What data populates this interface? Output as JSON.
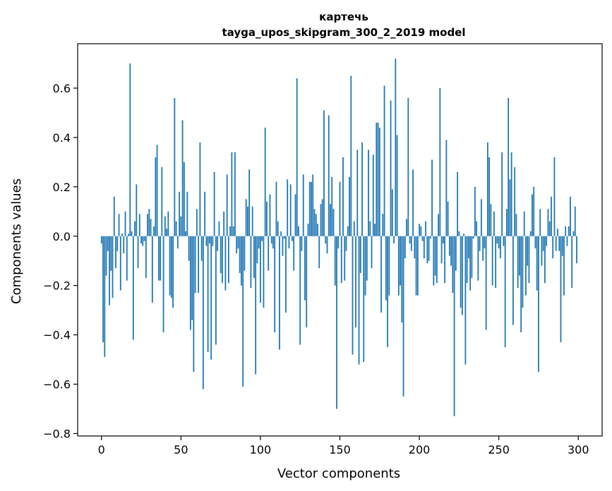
{
  "chart_data": {
    "type": "bar",
    "title": "картечь",
    "subtitle": "tayga_upos_skipgram_300_2_2019 model",
    "xlabel": "Vector components",
    "ylabel": "Components values",
    "xlim": [
      -15,
      315
    ],
    "ylim": [
      -0.81,
      0.78
    ],
    "xticks": [
      0,
      50,
      100,
      150,
      200,
      250,
      300
    ],
    "yticks": [
      -0.8,
      -0.6,
      -0.4,
      -0.2,
      0.0,
      0.2,
      0.4,
      0.6
    ],
    "xtick_labels": [
      "0",
      "50",
      "100",
      "150",
      "200",
      "250",
      "300"
    ],
    "ytick_labels": [
      "−0.8",
      "−0.6",
      "−0.4",
      "−0.2",
      "0.0",
      "0.2",
      "0.4",
      "0.6"
    ],
    "bar_color": "#1f77b4",
    "grid": false,
    "values": [
      -0.03,
      -0.43,
      -0.49,
      -0.16,
      -0.06,
      -0.28,
      -0.14,
      -0.25,
      0.16,
      -0.13,
      -0.06,
      0.09,
      -0.22,
      0.01,
      -0.07,
      0.1,
      -0.18,
      0.01,
      0.7,
      0.02,
      -0.42,
      0.06,
      0.21,
      -0.13,
      0.09,
      -0.03,
      -0.04,
      -0.02,
      -0.17,
      0.09,
      0.11,
      0.07,
      -0.27,
      0.04,
      0.32,
      0.37,
      -0.18,
      -0.18,
      0.28,
      -0.39,
      0.08,
      0.03,
      0.1,
      -0.24,
      -0.25,
      -0.29,
      0.56,
      0.06,
      -0.05,
      0.18,
      0.08,
      0.47,
      0.3,
      0.02,
      0.18,
      -0.1,
      -0.38,
      -0.34,
      -0.55,
      -0.23,
      0.11,
      -0.23,
      0.38,
      -0.1,
      -0.62,
      0.18,
      -0.04,
      -0.47,
      -0.03,
      -0.5,
      -0.04,
      0.26,
      -0.44,
      -0.06,
      0.06,
      -0.15,
      -0.19,
      0.1,
      -0.22,
      0.25,
      -0.19,
      0.04,
      0.34,
      0.04,
      0.34,
      -0.07,
      -0.05,
      -0.15,
      -0.2,
      -0.61,
      -0.14,
      0.15,
      0.12,
      0.27,
      -0.21,
      0.12,
      -0.17,
      -0.56,
      -0.11,
      -0.05,
      -0.27,
      -0.02,
      -0.29,
      0.44,
      0.14,
      -0.14,
      0.17,
      -0.03,
      -0.05,
      -0.39,
      0.22,
      0.06,
      -0.46,
      0.02,
      -0.08,
      -0.01,
      -0.31,
      0.23,
      -0.05,
      0.21,
      -0.02,
      -0.14,
      0.17,
      0.64,
      0.04,
      -0.44,
      -0.06,
      0.25,
      -0.26,
      -0.37,
      0.05,
      0.22,
      0.22,
      0.25,
      0.11,
      0.09,
      0.05,
      -0.13,
      0.13,
      0.15,
      0.51,
      -0.03,
      -0.07,
      0.49,
      0.13,
      0.24,
      0.11,
      -0.2,
      -0.7,
      -0.05,
      0.22,
      -0.19,
      0.32,
      -0.18,
      -0.06,
      0.04,
      0.24,
      0.65,
      -0.48,
      0.06,
      -0.37,
      0.35,
      -0.52,
      -0.15,
      0.38,
      -0.51,
      -0.24,
      -0.18,
      0.35,
      0.06,
      -0.13,
      0.33,
      0.05,
      0.46,
      0.46,
      0.44,
      -0.31,
      0.09,
      0.61,
      -0.26,
      -0.45,
      -0.24,
      0.55,
      0.19,
      -0.03,
      0.72,
      0.41,
      -0.24,
      -0.2,
      -0.35,
      -0.65,
      -0.09,
      0.07,
      0.56,
      -0.03,
      -0.06,
      0.27,
      -0.09,
      -0.24,
      -0.24,
      0.05,
      0.04,
      -0.02,
      -0.09,
      0.06,
      -0.11,
      -0.1,
      -0.01,
      0.31,
      -0.2,
      -0.16,
      -0.19,
      0.09,
      0.6,
      -0.11,
      -0.03,
      -0.19,
      0.39,
      0.14,
      -0.08,
      -0.12,
      -0.23,
      -0.73,
      -0.14,
      0.26,
      0.02,
      -0.29,
      -0.32,
      0.01,
      -0.52,
      -0.19,
      -0.09,
      -0.22,
      -0.17,
      -0.01,
      0.2,
      0.06,
      -0.18,
      -0.06,
      0.15,
      -0.1,
      -0.05,
      -0.38,
      0.38,
      0.32,
      0.13,
      -0.2,
      0.1,
      -0.21,
      -0.03,
      -0.05,
      -0.09,
      0.34,
      -0.04,
      -0.45,
      0.11,
      0.56,
      0.23,
      0.34,
      -0.36,
      0.28,
      0.09,
      -0.21,
      -0.16,
      -0.39,
      -0.29,
      0.1,
      -0.24,
      -0.12,
      -0.19,
      0.02,
      0.17,
      0.2,
      -0.05,
      -0.22,
      -0.55,
      0.11,
      -0.12,
      -0.06,
      -0.19,
      -0.04,
      0.11,
      0.06,
      0.16,
      -0.09,
      0.32,
      -0.06,
      0.03,
      -0.06,
      -0.43,
      -0.08,
      -0.24,
      0.04,
      -0.04,
      0.04,
      0.16,
      -0.21,
      0.02,
      0.12,
      -0.11
    ]
  }
}
